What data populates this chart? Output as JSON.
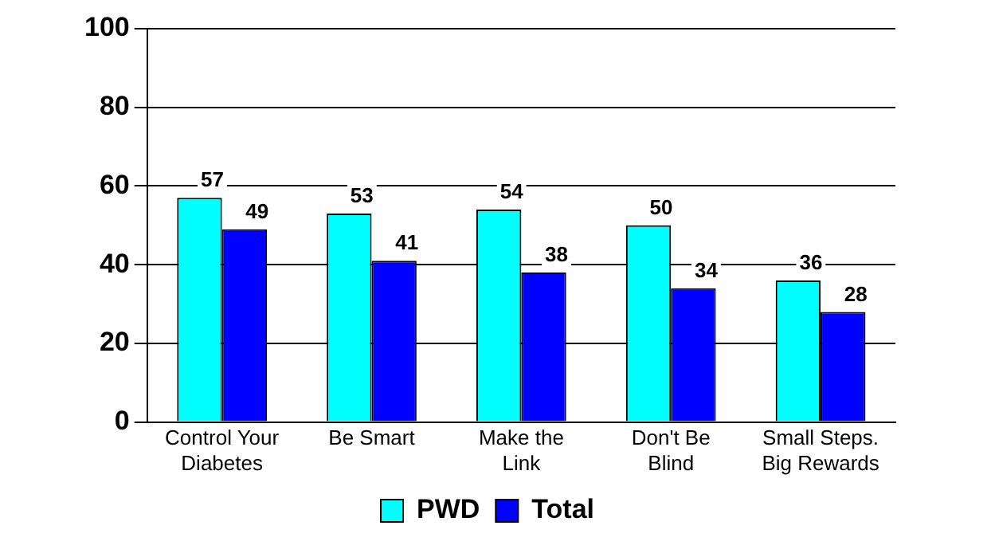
{
  "chart_data": {
    "type": "bar",
    "categories": [
      "Control Your Diabetes",
      "Be Smart",
      "Make the Link",
      "Don't Be Blind",
      "Small Steps. Big Rewards"
    ],
    "series": [
      {
        "name": "PWD",
        "color": "#00ffff",
        "values": [
          57,
          53,
          54,
          50,
          36
        ]
      },
      {
        "name": "Total",
        "color": "#0000ff",
        "values": [
          49,
          41,
          38,
          34,
          28
        ]
      }
    ],
    "ylim": [
      0,
      100
    ],
    "yticks": [
      0,
      20,
      40,
      60,
      80,
      100
    ],
    "grid": "y",
    "legend": "bottom",
    "data_labels": true
  }
}
